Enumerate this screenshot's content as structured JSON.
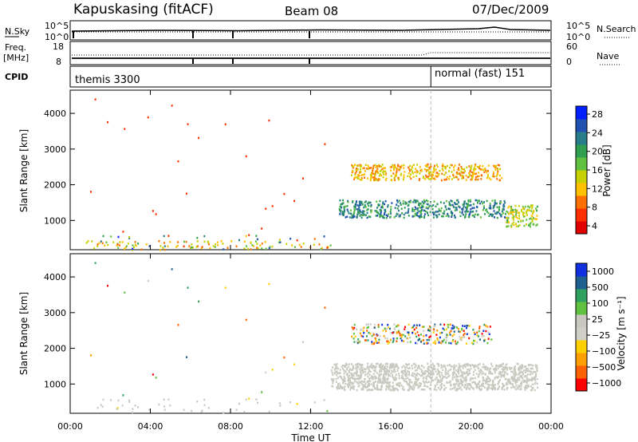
{
  "header": {
    "station": "Kapuskasing (fitACF)",
    "beam": "Beam 08",
    "date": "07/Dec/2009"
  },
  "strips": {
    "nsky": {
      "label": "N.Sky",
      "ticks": [
        "10^5",
        "10^0"
      ],
      "right_label": "N.Search",
      "right_ticks": [
        "10^5",
        "10^0"
      ]
    },
    "freq": {
      "label_line1": "Freq.",
      "label_line2": "[MHz]",
      "ticks": [
        "18",
        "8"
      ],
      "right_label": "Nave",
      "right_ticks": [
        "60",
        "0"
      ]
    },
    "cpid": {
      "label": "CPID",
      "programs": [
        "themis 3300",
        "normal (fast) 151"
      ],
      "change_hour": 18
    }
  },
  "chart_data": [
    {
      "type": "heatmap",
      "panel": "power",
      "ylabel": "Slant Range [km]",
      "ylim": [
        180,
        4650
      ],
      "yticks": [
        1000,
        2000,
        3000,
        4000
      ],
      "xlim": [
        0,
        24
      ],
      "colorbar": {
        "label": "Power [dB]",
        "ticks": [
          "28",
          "24",
          "20",
          "16",
          "12",
          "8",
          "4"
        ],
        "range": [
          0,
          30
        ],
        "colors": [
          "#0020ff",
          "#2050b0",
          "#2a7d8a",
          "#30a050",
          "#60c040",
          "#c8d000",
          "#ffc000",
          "#ff7000",
          "#ff3000",
          "#e00000"
        ]
      },
      "echo_regions": [
        {
          "t_start": 13.4,
          "t_end": 21.7,
          "range_low": 1100,
          "range_high": 1600,
          "power_db": 22
        },
        {
          "t_start": 14.0,
          "t_end": 21.5,
          "range_low": 2150,
          "range_high": 2600,
          "power_db": 10
        },
        {
          "t_start": 21.7,
          "t_end": 23.3,
          "range_low": 850,
          "range_high": 1450,
          "power_db": 14
        },
        {
          "t_start": 0.5,
          "t_end": 13.0,
          "range_low": 200,
          "range_high": 450,
          "power_db": 12
        }
      ]
    },
    {
      "type": "heatmap",
      "panel": "velocity",
      "ylabel": "Slant Range [km]",
      "ylim": [
        180,
        4650
      ],
      "yticks": [
        1000,
        2000,
        3000,
        4000
      ],
      "xlim": [
        0,
        24
      ],
      "xticks": [
        "00:00",
        "04:00",
        "08:00",
        "12:00",
        "16:00",
        "20:00",
        "00:00"
      ],
      "xlabel": "Time UT",
      "colorbar": {
        "label": "Velocity [m s⁻¹]",
        "ticks": [
          "1000",
          "500",
          "100",
          "25",
          "−25",
          "−100",
          "−500",
          "−1000"
        ],
        "range": [
          -1200,
          1200
        ],
        "colors": [
          "#ff0000",
          "#ff6000",
          "#ffa000",
          "#ffd000",
          "#d0d0c8",
          "#c8c8c0",
          "#60c040",
          "#30a060",
          "#206090",
          "#1030e0"
        ]
      },
      "echo_regions": [
        {
          "t_start": 13.0,
          "t_end": 23.3,
          "range_low": 850,
          "range_high": 1600,
          "type": "ground_scatter"
        },
        {
          "t_start": 14.0,
          "t_end": 21.0,
          "range_low": 2150,
          "range_high": 2700,
          "type": "ionospheric"
        }
      ]
    }
  ]
}
